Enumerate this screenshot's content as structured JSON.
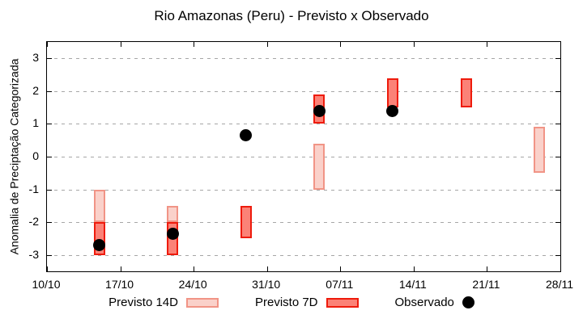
{
  "chart_data": {
    "type": "bar",
    "subtype": "floating-range-boxes-with-scatter-overlay",
    "title": "Rio Amazonas (Peru) - Previsto x Observado",
    "ylabel": "Anomalia de Preciptação Categorizada",
    "xlabel": "",
    "ylim": [
      -3.5,
      3.5
    ],
    "yticks": [
      3,
      2,
      1,
      0,
      -1,
      -2,
      -3
    ],
    "xticks": [
      {
        "label": "10/10",
        "day": 0
      },
      {
        "label": "17/10",
        "day": 7
      },
      {
        "label": "24/10",
        "day": 14
      },
      {
        "label": "31/10",
        "day": 21
      },
      {
        "label": "07/11",
        "day": 28
      },
      {
        "label": "14/11",
        "day": 35
      },
      {
        "label": "21/11",
        "day": 42
      },
      {
        "label": "28/11",
        "day": 49
      }
    ],
    "grid": {
      "horizontal": "dashed",
      "vertical": "none",
      "color": "#a6a6a6"
    },
    "legend_position": "bottom-outside",
    "series": [
      {
        "name": "Previsto 14D",
        "kind": "range-box",
        "fill": "#fad1ca",
        "border": "#f19486",
        "points": [
          {
            "date": "15/10",
            "day": 5,
            "low": -2.0,
            "high": -1.0
          },
          {
            "date": "22/10",
            "day": 12,
            "low": -2.0,
            "high": -1.5
          },
          {
            "date": "05/11",
            "day": 26,
            "low": -1.0,
            "high": 0.4
          },
          {
            "date": "26/11",
            "day": 47,
            "low": -0.5,
            "high": 0.9
          }
        ]
      },
      {
        "name": "Previsto 7D",
        "kind": "range-box",
        "fill": "#fb8277",
        "border": "#ee1b0c",
        "points": [
          {
            "date": "15/10",
            "day": 5,
            "low": -3.0,
            "high": -2.0
          },
          {
            "date": "22/10",
            "day": 12,
            "low": -3.0,
            "high": -2.0
          },
          {
            "date": "29/10",
            "day": 19,
            "low": -2.5,
            "high": -1.5
          },
          {
            "date": "05/11",
            "day": 26,
            "low": 1.0,
            "high": 1.9
          },
          {
            "date": "12/11",
            "day": 33,
            "low": 1.5,
            "high": 2.4
          },
          {
            "date": "19/11",
            "day": 40,
            "low": 1.5,
            "high": 2.4
          }
        ]
      },
      {
        "name": "Observado",
        "kind": "scatter",
        "color": "#000000",
        "points": [
          {
            "date": "15/10",
            "day": 5,
            "value": -2.7
          },
          {
            "date": "22/10",
            "day": 12,
            "value": -2.35
          },
          {
            "date": "29/10",
            "day": 19,
            "value": 0.65
          },
          {
            "date": "05/11",
            "day": 26,
            "value": 1.4
          },
          {
            "date": "12/11",
            "day": 33,
            "value": 1.4
          }
        ]
      }
    ]
  },
  "legend": {
    "items": [
      {
        "label": "Previsto 14D"
      },
      {
        "label": "Previsto 7D"
      },
      {
        "label": "Observado"
      }
    ]
  }
}
